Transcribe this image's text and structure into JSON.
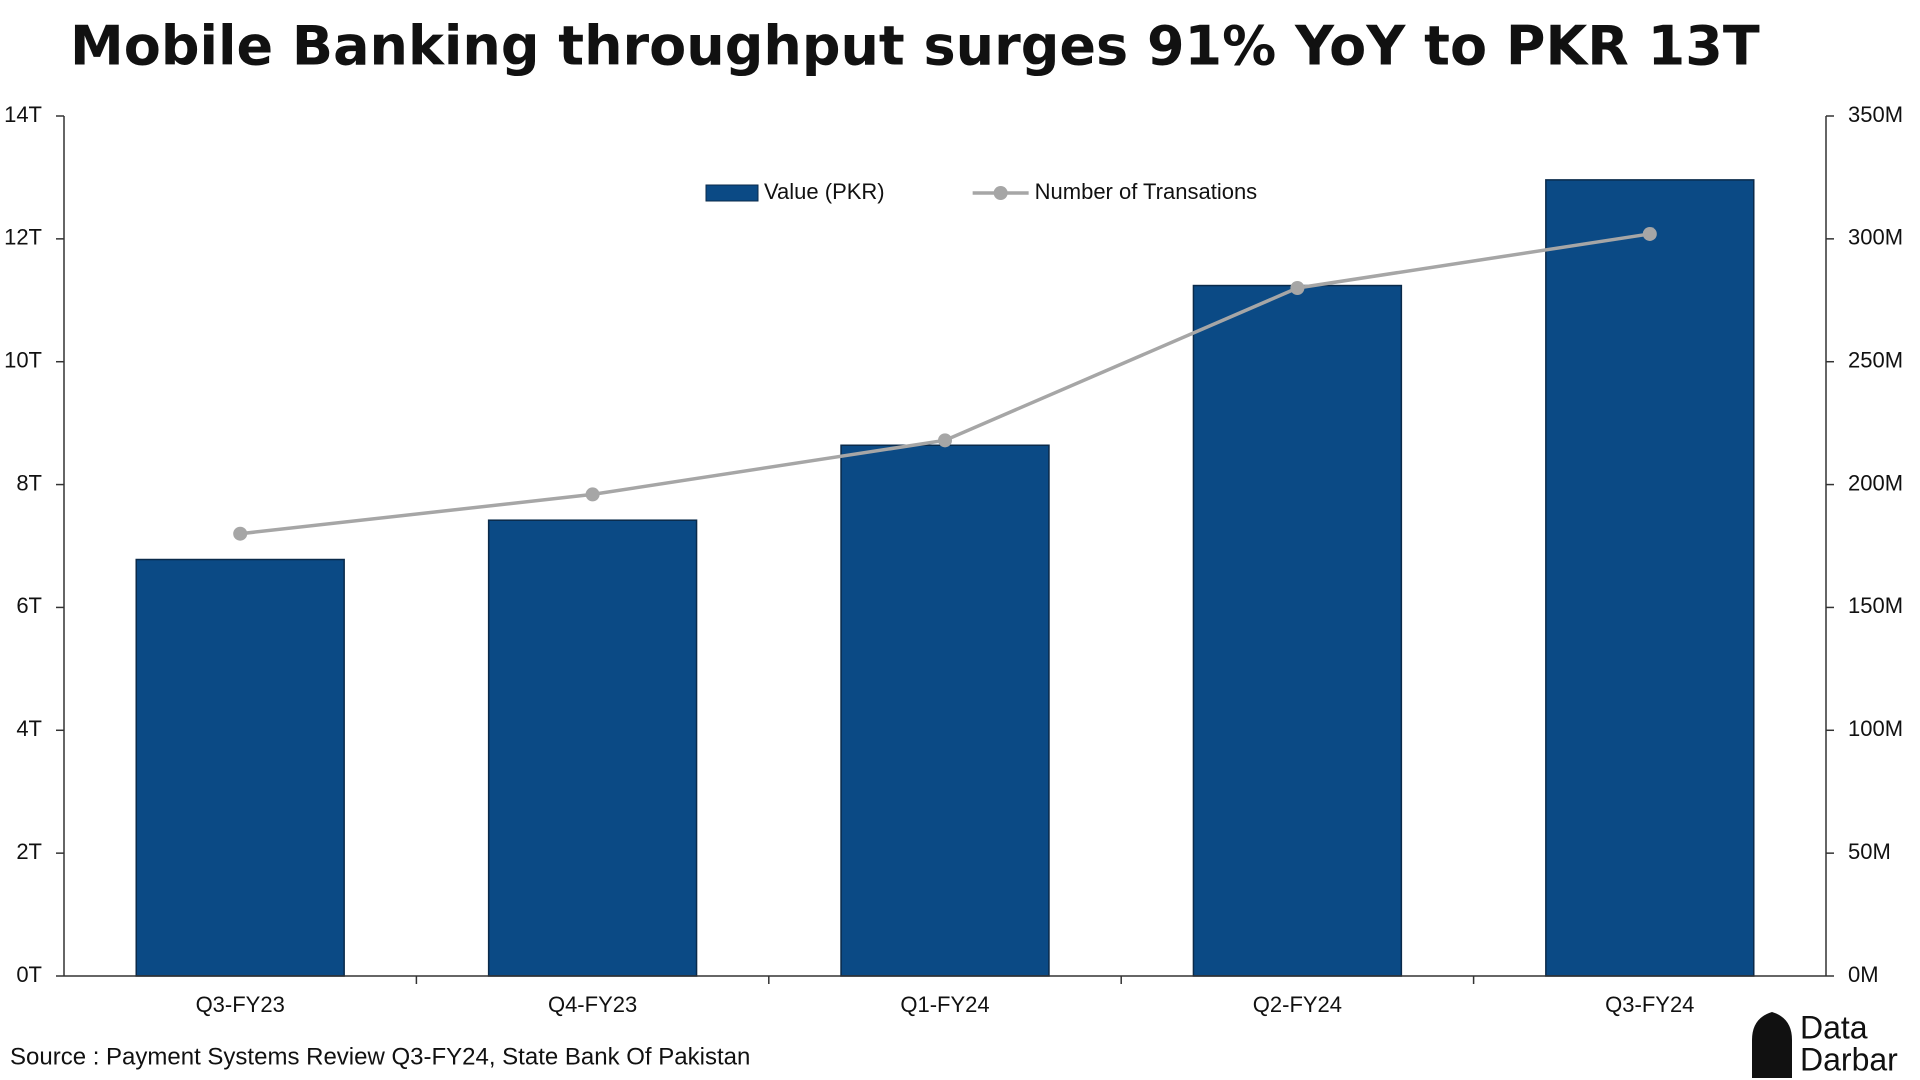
{
  "chart_data": {
    "type": "bar_line",
    "title": "Mobile Banking throughput surges 91% YoY to PKR 13T",
    "source": "Source : Payment Systems Review Q3-FY24, State Bank Of Pakistan",
    "logo": {
      "top": "Data",
      "bottom": "Darbar"
    },
    "categories": [
      "Q3-FY23",
      "Q4-FY23",
      "Q1-FY24",
      "Q2-FY24",
      "Q3-FY24"
    ],
    "series": [
      {
        "name": "Value (PKR)",
        "type": "bar",
        "color": "#0b4a85",
        "values": [
          6.78,
          7.42,
          8.64,
          11.24,
          12.96
        ]
      },
      {
        "name": "Number of Transations",
        "type": "line",
        "axis": "y2",
        "color": "#a6a6a6",
        "values": [
          180,
          196,
          218,
          280,
          302
        ]
      }
    ],
    "ylim": [
      0,
      14
    ],
    "yticks": [
      {
        "value": 0,
        "label": "0T"
      },
      {
        "value": 2,
        "label": "2T"
      },
      {
        "value": 4,
        "label": "4T"
      },
      {
        "value": 6,
        "label": "6T"
      },
      {
        "value": 8,
        "label": "8T"
      },
      {
        "value": 10,
        "label": "10T"
      },
      {
        "value": 12,
        "label": "12T"
      },
      {
        "value": 14,
        "label": "14T"
      }
    ],
    "y2lim": [
      0,
      350
    ],
    "y2ticks": [
      {
        "value": 0,
        "label": "0M"
      },
      {
        "value": 50,
        "label": "50M"
      },
      {
        "value": 100,
        "label": "100M"
      },
      {
        "value": 150,
        "label": "150M"
      },
      {
        "value": 200,
        "label": "200M"
      },
      {
        "value": 250,
        "label": "250M"
      },
      {
        "value": 300,
        "label": "300M"
      },
      {
        "value": 350,
        "label": "350M"
      }
    ],
    "legend": "top-center",
    "grid": false
  }
}
